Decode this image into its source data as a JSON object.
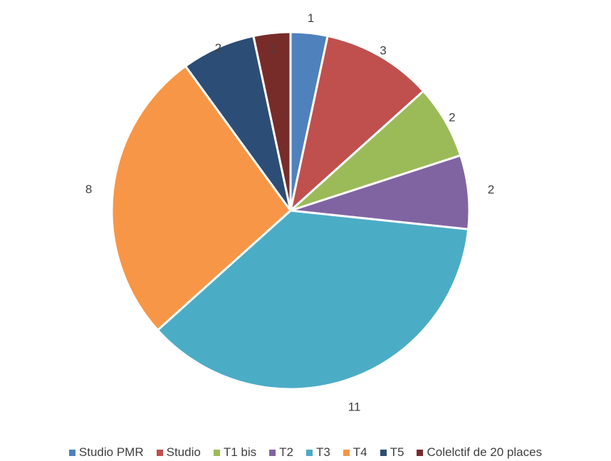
{
  "chart_data": {
    "type": "pie",
    "categories": [
      "Studio PMR",
      "Studio",
      "T1 bis",
      "T2",
      "T3",
      "T4",
      "T5",
      "Colelctif de 20 places"
    ],
    "values": [
      1,
      3,
      2,
      2,
      11,
      8,
      2,
      1
    ],
    "colors": [
      "#4F81BD",
      "#C0504D",
      "#9BBB59",
      "#8064A2",
      "#4BACC6",
      "#F79646",
      "#2C4D75",
      "#772C2A"
    ],
    "legend_position": "bottom",
    "data_labels_shown": true
  }
}
